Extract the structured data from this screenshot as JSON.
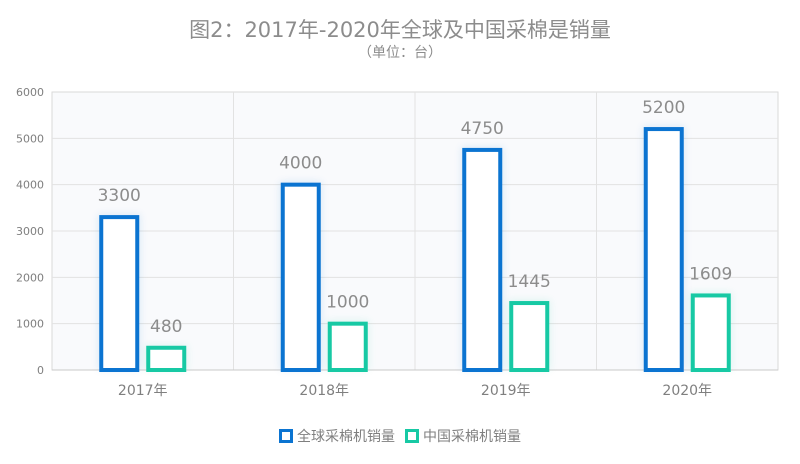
{
  "title": "图2：2017年-2020年全球及中国采棉是销量",
  "subtitle": "（单位：台）",
  "chart_data": {
    "type": "bar",
    "categories": [
      "2017年",
      "2018年",
      "2019年",
      "2020年"
    ],
    "series": [
      {
        "name": "全球采棉机销量",
        "values": [
          3300,
          4000,
          4750,
          5200
        ],
        "color": "#0b74d1"
      },
      {
        "name": "中国采棉机销量",
        "values": [
          480,
          1000,
          1445,
          1609
        ],
        "color": "#17c9a4"
      }
    ],
    "ylim": [
      0,
      6000
    ],
    "yticks": [
      0,
      1000,
      2000,
      3000,
      4000,
      5000,
      6000
    ],
    "grid": true,
    "legend": "bottom",
    "xlabel": "",
    "ylabel": ""
  }
}
